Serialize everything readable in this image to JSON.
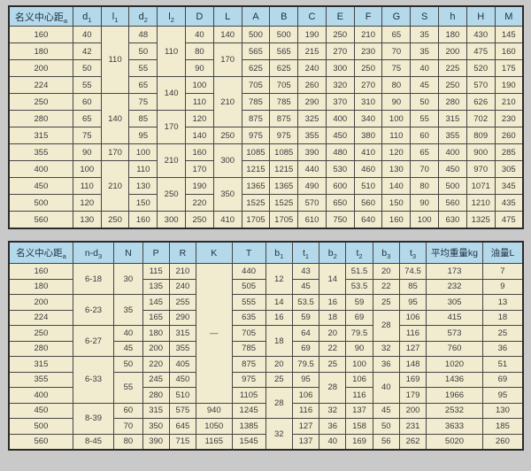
{
  "colors": {
    "page_background": "#c9c9c9",
    "header_background": "#b3d9ea",
    "cell_background": "#f1ebd0",
    "grid_line": "#454545",
    "text": "#3b3b3b"
  },
  "tables": [
    {
      "name": "shaft-dimensions-table",
      "headers": [
        {
          "t": "名义中心距",
          "s": "a"
        },
        {
          "t": "d",
          "s": "1"
        },
        {
          "t": "l",
          "s": "1"
        },
        {
          "t": "d",
          "s": "2"
        },
        {
          "t": "l",
          "s": "2"
        },
        {
          "t": "D"
        },
        {
          "t": "L"
        },
        {
          "t": "A"
        },
        {
          "t": "B"
        },
        {
          "t": "C"
        },
        {
          "t": "E"
        },
        {
          "t": "F"
        },
        {
          "t": "G"
        },
        {
          "t": "S"
        },
        {
          "t": "h"
        },
        {
          "t": "H"
        },
        {
          "t": "M"
        }
      ],
      "rows": [
        [
          {
            "v": "160"
          },
          {
            "v": "40"
          },
          {
            "v": "110",
            "rs": 4
          },
          {
            "v": "48"
          },
          {
            "v": "110",
            "rs": 3
          },
          {
            "v": "40"
          },
          {
            "v": "140"
          },
          {
            "v": "500"
          },
          {
            "v": "500"
          },
          {
            "v": "190"
          },
          {
            "v": "250"
          },
          {
            "v": "210"
          },
          {
            "v": "65"
          },
          {
            "v": "35"
          },
          {
            "v": "180"
          },
          {
            "v": "430"
          },
          {
            "v": "145"
          }
        ],
        [
          {
            "v": "180"
          },
          {
            "v": "42"
          },
          {
            "v": "50"
          },
          {
            "v": "80"
          },
          {
            "v": "170",
            "rs": 2
          },
          {
            "v": "565"
          },
          {
            "v": "565"
          },
          {
            "v": "215"
          },
          {
            "v": "270"
          },
          {
            "v": "230"
          },
          {
            "v": "70"
          },
          {
            "v": "35"
          },
          {
            "v": "200"
          },
          {
            "v": "475"
          },
          {
            "v": "160"
          }
        ],
        [
          {
            "v": "200"
          },
          {
            "v": "50"
          },
          {
            "v": "55"
          },
          {
            "v": "90"
          },
          {
            "v": "625"
          },
          {
            "v": "625"
          },
          {
            "v": "240"
          },
          {
            "v": "300"
          },
          {
            "v": "250"
          },
          {
            "v": "75"
          },
          {
            "v": "40"
          },
          {
            "v": "225"
          },
          {
            "v": "520"
          },
          {
            "v": "175"
          }
        ],
        [
          {
            "v": "224"
          },
          {
            "v": "55"
          },
          {
            "v": "65"
          },
          {
            "v": "140",
            "rs": 2
          },
          {
            "v": "100"
          },
          {
            "v": "210",
            "rs": 3
          },
          {
            "v": "705"
          },
          {
            "v": "705"
          },
          {
            "v": "260"
          },
          {
            "v": "320"
          },
          {
            "v": "270"
          },
          {
            "v": "80"
          },
          {
            "v": "45"
          },
          {
            "v": "250"
          },
          {
            "v": "570"
          },
          {
            "v": "190"
          }
        ],
        [
          {
            "v": "250"
          },
          {
            "v": "60"
          },
          {
            "v": "140",
            "rs": 3
          },
          {
            "v": "75"
          },
          {
            "v": "110"
          },
          {
            "v": "785"
          },
          {
            "v": "785"
          },
          {
            "v": "290"
          },
          {
            "v": "370"
          },
          {
            "v": "310"
          },
          {
            "v": "90"
          },
          {
            "v": "50"
          },
          {
            "v": "280"
          },
          {
            "v": "626"
          },
          {
            "v": "210"
          }
        ],
        [
          {
            "v": "280"
          },
          {
            "v": "65"
          },
          {
            "v": "85"
          },
          {
            "v": "170",
            "rs": 2
          },
          {
            "v": "120"
          },
          {
            "v": "875"
          },
          {
            "v": "875"
          },
          {
            "v": "325"
          },
          {
            "v": "400"
          },
          {
            "v": "340"
          },
          {
            "v": "100"
          },
          {
            "v": "55"
          },
          {
            "v": "315"
          },
          {
            "v": "702"
          },
          {
            "v": "230"
          }
        ],
        [
          {
            "v": "315"
          },
          {
            "v": "75"
          },
          {
            "v": "95"
          },
          {
            "v": "140"
          },
          {
            "v": "250"
          },
          {
            "v": "975"
          },
          {
            "v": "975"
          },
          {
            "v": "355"
          },
          {
            "v": "450"
          },
          {
            "v": "380"
          },
          {
            "v": "110"
          },
          {
            "v": "60"
          },
          {
            "v": "355"
          },
          {
            "v": "809"
          },
          {
            "v": "260"
          }
        ],
        [
          {
            "v": "355"
          },
          {
            "v": "90"
          },
          {
            "v": "170"
          },
          {
            "v": "100"
          },
          {
            "v": "210",
            "rs": 2
          },
          {
            "v": "160"
          },
          {
            "v": "300",
            "rs": 2
          },
          {
            "v": "1085"
          },
          {
            "v": "1085"
          },
          {
            "v": "390"
          },
          {
            "v": "480"
          },
          {
            "v": "410"
          },
          {
            "v": "120"
          },
          {
            "v": "65"
          },
          {
            "v": "400"
          },
          {
            "v": "900"
          },
          {
            "v": "285"
          }
        ],
        [
          {
            "v": "400"
          },
          {
            "v": "100"
          },
          {
            "v": "210",
            "rs": 3
          },
          {
            "v": "110"
          },
          {
            "v": "170"
          },
          {
            "v": "1215"
          },
          {
            "v": "1215"
          },
          {
            "v": "440"
          },
          {
            "v": "530"
          },
          {
            "v": "460"
          },
          {
            "v": "130"
          },
          {
            "v": "70"
          },
          {
            "v": "450"
          },
          {
            "v": "970"
          },
          {
            "v": "305"
          }
        ],
        [
          {
            "v": "450"
          },
          {
            "v": "110"
          },
          {
            "v": "130"
          },
          {
            "v": "250",
            "rs": 2
          },
          {
            "v": "190"
          },
          {
            "v": "350",
            "rs": 2
          },
          {
            "v": "1365"
          },
          {
            "v": "1365"
          },
          {
            "v": "490"
          },
          {
            "v": "600"
          },
          {
            "v": "510"
          },
          {
            "v": "140"
          },
          {
            "v": "80"
          },
          {
            "v": "500"
          },
          {
            "v": "1071"
          },
          {
            "v": "345"
          }
        ],
        [
          {
            "v": "500"
          },
          {
            "v": "120"
          },
          {
            "v": "150"
          },
          {
            "v": "220"
          },
          {
            "v": "1525"
          },
          {
            "v": "1525"
          },
          {
            "v": "570"
          },
          {
            "v": "650"
          },
          {
            "v": "560"
          },
          {
            "v": "150"
          },
          {
            "v": "90"
          },
          {
            "v": "560"
          },
          {
            "v": "1210"
          },
          {
            "v": "435"
          }
        ],
        [
          {
            "v": "560"
          },
          {
            "v": "130"
          },
          {
            "v": "250"
          },
          {
            "v": "160"
          },
          {
            "v": "300"
          },
          {
            "v": "250"
          },
          {
            "v": "410"
          },
          {
            "v": "1705"
          },
          {
            "v": "1705"
          },
          {
            "v": "610"
          },
          {
            "v": "750"
          },
          {
            "v": "640"
          },
          {
            "v": "160"
          },
          {
            "v": "100"
          },
          {
            "v": "630"
          },
          {
            "v": "1325"
          },
          {
            "v": "475"
          }
        ]
      ]
    },
    {
      "name": "bolt-keyway-weight-table",
      "headers": [
        {
          "t": "名义中心距",
          "s": "a"
        },
        {
          "t": "n-d",
          "s": "3"
        },
        {
          "t": "N"
        },
        {
          "t": "P"
        },
        {
          "t": "R"
        },
        {
          "t": "K"
        },
        {
          "t": "T"
        },
        {
          "t": "b",
          "s": "1"
        },
        {
          "t": "t",
          "s": "1"
        },
        {
          "t": "b",
          "s": "2"
        },
        {
          "t": "t",
          "s": "2"
        },
        {
          "t": "b",
          "s": "3"
        },
        {
          "t": "t",
          "s": "3"
        },
        {
          "t": "平均重量kg"
        },
        {
          "t": "油量L"
        }
      ],
      "rows": [
        [
          {
            "v": "160"
          },
          {
            "v": "6-18",
            "rs": 2
          },
          {
            "v": "30",
            "rs": 2
          },
          {
            "v": "115"
          },
          {
            "v": "210"
          },
          {
            "v": "—",
            "rs": 9
          },
          {
            "v": "440"
          },
          {
            "v": "12",
            "rs": 2
          },
          {
            "v": "43"
          },
          {
            "v": "14",
            "rs": 2
          },
          {
            "v": "51.5"
          },
          {
            "v": "20"
          },
          {
            "v": "74.5"
          },
          {
            "v": "173"
          },
          {
            "v": "7"
          }
        ],
        [
          {
            "v": "180"
          },
          {
            "v": "135"
          },
          {
            "v": "240"
          },
          {
            "v": "505"
          },
          {
            "v": "45"
          },
          {
            "v": "53.5"
          },
          {
            "v": "22"
          },
          {
            "v": "85"
          },
          {
            "v": "232"
          },
          {
            "v": "9"
          }
        ],
        [
          {
            "v": "200"
          },
          {
            "v": "6-23",
            "rs": 2
          },
          {
            "v": "35",
            "rs": 2
          },
          {
            "v": "145"
          },
          {
            "v": "255"
          },
          {
            "v": "555"
          },
          {
            "v": "14"
          },
          {
            "v": "53.5"
          },
          {
            "v": "16"
          },
          {
            "v": "59"
          },
          {
            "v": "25"
          },
          {
            "v": "95"
          },
          {
            "v": "305"
          },
          {
            "v": "13"
          }
        ],
        [
          {
            "v": "224"
          },
          {
            "v": "165"
          },
          {
            "v": "290"
          },
          {
            "v": "635"
          },
          {
            "v": "16"
          },
          {
            "v": "59"
          },
          {
            "v": "18"
          },
          {
            "v": "69"
          },
          {
            "v": "28",
            "rs": 2
          },
          {
            "v": "106"
          },
          {
            "v": "415"
          },
          {
            "v": "18"
          }
        ],
        [
          {
            "v": "250"
          },
          {
            "v": "6-27",
            "rs": 2
          },
          {
            "v": "40"
          },
          {
            "v": "180"
          },
          {
            "v": "315"
          },
          {
            "v": "705"
          },
          {
            "v": "18",
            "rs": 2
          },
          {
            "v": "64"
          },
          {
            "v": "20"
          },
          {
            "v": "79.5"
          },
          {
            "v": "116"
          },
          {
            "v": "573"
          },
          {
            "v": "25"
          }
        ],
        [
          {
            "v": "280"
          },
          {
            "v": "45"
          },
          {
            "v": "200"
          },
          {
            "v": "355"
          },
          {
            "v": "785"
          },
          {
            "v": "69"
          },
          {
            "v": "22"
          },
          {
            "v": "90"
          },
          {
            "v": "32"
          },
          {
            "v": "127"
          },
          {
            "v": "760"
          },
          {
            "v": "36"
          }
        ],
        [
          {
            "v": "315"
          },
          {
            "v": "6-33",
            "rs": 3
          },
          {
            "v": "50"
          },
          {
            "v": "220"
          },
          {
            "v": "405"
          },
          {
            "v": "875"
          },
          {
            "v": "20"
          },
          {
            "v": "79.5"
          },
          {
            "v": "25"
          },
          {
            "v": "100"
          },
          {
            "v": "36"
          },
          {
            "v": "148"
          },
          {
            "v": "1020"
          },
          {
            "v": "51"
          }
        ],
        [
          {
            "v": "355"
          },
          {
            "v": "55",
            "rs": 2
          },
          {
            "v": "245"
          },
          {
            "v": "450"
          },
          {
            "v": "975"
          },
          {
            "v": "25"
          },
          {
            "v": "95"
          },
          {
            "v": "28",
            "rs": 2
          },
          {
            "v": "106"
          },
          {
            "v": "40",
            "rs": 2
          },
          {
            "v": "169"
          },
          {
            "v": "1436"
          },
          {
            "v": "69"
          }
        ],
        [
          {
            "v": "400"
          },
          {
            "v": "280"
          },
          {
            "v": "510"
          },
          {
            "v": "1105"
          },
          {
            "v": "28",
            "rs": 2
          },
          {
            "v": "106"
          },
          {
            "v": "116"
          },
          {
            "v": "179"
          },
          {
            "v": "1966"
          },
          {
            "v": "95"
          }
        ],
        [
          {
            "v": "450"
          },
          {
            "v": "8-39",
            "rs": 2
          },
          {
            "v": "60"
          },
          {
            "v": "315"
          },
          {
            "v": "575"
          },
          {
            "v": "940"
          },
          {
            "v": "1245"
          },
          {
            "v": "116"
          },
          {
            "v": "32"
          },
          {
            "v": "137"
          },
          {
            "v": "45"
          },
          {
            "v": "200"
          },
          {
            "v": "2532"
          },
          {
            "v": "130"
          }
        ],
        [
          {
            "v": "500"
          },
          {
            "v": "70"
          },
          {
            "v": "350"
          },
          {
            "v": "645"
          },
          {
            "v": "1050"
          },
          {
            "v": "1385"
          },
          {
            "v": "32",
            "rs": 2
          },
          {
            "v": "127"
          },
          {
            "v": "36"
          },
          {
            "v": "158"
          },
          {
            "v": "50"
          },
          {
            "v": "231"
          },
          {
            "v": "3633"
          },
          {
            "v": "185"
          }
        ],
        [
          {
            "v": "560"
          },
          {
            "v": "8-45"
          },
          {
            "v": "80"
          },
          {
            "v": "390"
          },
          {
            "v": "715"
          },
          {
            "v": "1165"
          },
          {
            "v": "1545"
          },
          {
            "v": "137"
          },
          {
            "v": "40"
          },
          {
            "v": "169"
          },
          {
            "v": "56"
          },
          {
            "v": "262"
          },
          {
            "v": "5020"
          },
          {
            "v": "260"
          }
        ]
      ]
    }
  ]
}
